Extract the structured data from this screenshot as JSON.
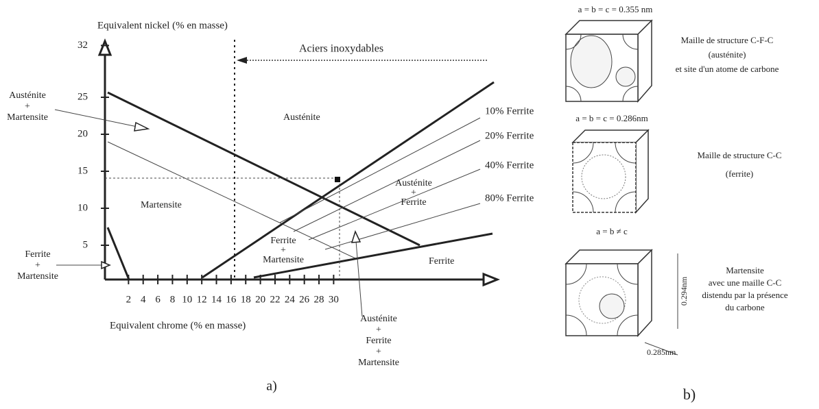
{
  "panel_a": {
    "y_axis_title": "Equivalent nickel (% en masse)",
    "x_axis_title": "Equivalent chrome (% en masse)",
    "xticks": [
      2,
      4,
      6,
      8,
      10,
      12,
      14,
      16,
      18,
      20,
      22,
      24,
      26,
      28,
      30
    ],
    "yticks": [
      5,
      10,
      15,
      20,
      25,
      32
    ],
    "annotation": "Aciers inoxydables",
    "regions": {
      "austenite": "Austénite",
      "martensite": "Martensite",
      "ferrite": "Ferrite",
      "austenite_ferrite": [
        "Austénite",
        "+",
        "Ferrite"
      ],
      "ferrite_martensite": [
        "Ferrite",
        "+",
        "Martensite"
      ]
    },
    "callouts": {
      "austenite_martensite": [
        "Austénite",
        "+",
        "Martensite"
      ],
      "ferrite_martensite": [
        "Ferrite",
        "+",
        "Martensite"
      ],
      "austenite_ferrite_martensite": [
        "Austénite",
        "+",
        "Ferrite",
        "+",
        "Martensite"
      ]
    },
    "ferrite_lines": [
      "10% Ferrite",
      "20% Ferrite",
      "40% Ferrite",
      "80% Ferrite"
    ],
    "label": "a)"
  },
  "panel_b": {
    "fcc": {
      "params": "a = b = c = 0.355 nm",
      "description": [
        "Maille de structure C-F-C",
        "(austénite)",
        "et site d'un atome de carbone"
      ]
    },
    "bcc": {
      "params": "a = b = c = 0.286nm",
      "description": [
        "Maille de structure C-C",
        "(ferrite)"
      ]
    },
    "martensite": {
      "params": "a = b ≠ c",
      "description": [
        "Martensite",
        "avec une maille C-C",
        "distendu par la présence",
        "du carbone"
      ],
      "height": "0.294nm",
      "width": "0.285nm"
    },
    "label": "b)"
  }
}
